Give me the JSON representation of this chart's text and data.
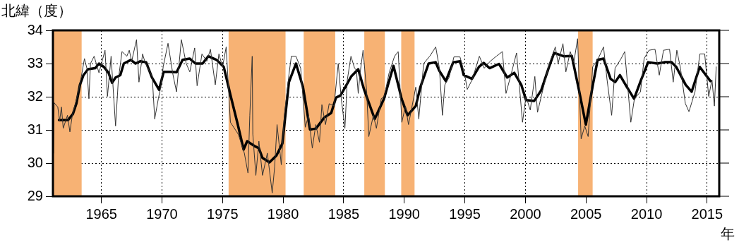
{
  "chart_data": {
    "type": "line",
    "ylabel": "北緯（度）",
    "xlabel": "年",
    "xlim": [
      1961,
      2016
    ],
    "xticks": [
      1965,
      1970,
      1975,
      1980,
      1985,
      1990,
      1995,
      2000,
      2005,
      2010,
      2015
    ],
    "ylim": [
      29,
      34
    ],
    "yticks": [
      29,
      30,
      31,
      32,
      33,
      34
    ],
    "grid": true,
    "marker": "none",
    "bands": [
      {
        "axis": "x",
        "from": 1961,
        "to": 1963.37,
        "color": "#f7b274"
      },
      {
        "axis": "x",
        "from": 1975.5,
        "to": 1980.2,
        "color": "#f7b274"
      },
      {
        "axis": "x",
        "from": 1981.7,
        "to": 1984.3,
        "color": "#f7b274"
      },
      {
        "axis": "x",
        "from": 1986.7,
        "to": 1988.4,
        "color": "#f7b274"
      },
      {
        "axis": "x",
        "from": 1989.75,
        "to": 1990.85,
        "color": "#f7b274"
      },
      {
        "axis": "x",
        "from": 2004.35,
        "to": 2005.55,
        "color": "#f7b274"
      }
    ],
    "series": [
      {
        "color": "#333333",
        "x": [
          1961.05,
          1961.1,
          1961.4,
          1961.55,
          1961.7,
          1961.85,
          1962.2,
          1962.4,
          1962.6,
          1963.1,
          1963.4,
          1963.6,
          1963.8,
          1963.97,
          1964.1,
          1964.4,
          1964.8,
          1965.3,
          1965.5,
          1965.8,
          1966.17,
          1966.4,
          1966.7,
          1967.1,
          1967.3,
          1967.5,
          1967.9,
          1968.1,
          1968.4,
          1968.6,
          1969.2,
          1969.4,
          1969.7,
          1969.9,
          1970.1,
          1970.5,
          1970.9,
          1971.2,
          1971.6,
          1972.0,
          1972.3,
          1972.7,
          1972.9,
          1973.3,
          1973.7,
          1974.0,
          1974.4,
          1974.7,
          1975.0,
          1975.3,
          1975.65,
          1976.3,
          1976.8,
          1977.1,
          1977.25,
          1977.45,
          1977.5,
          1977.75,
          1978.0,
          1978.3,
          1978.7,
          1979.1,
          1979.3,
          1979.5,
          1979.85,
          1980.1,
          1980.5,
          1980.68,
          1981.06,
          1981.45,
          1981.83,
          1982.1,
          1982.41,
          1982.7,
          1983.0,
          1983.2,
          1983.5,
          1983.8,
          1984.2,
          1984.55,
          1984.8,
          1985.1,
          1985.3,
          1985.6,
          1985.9,
          1986.05,
          1986.2,
          1986.35,
          1986.6,
          1986.9,
          1987.07,
          1987.45,
          1987.7,
          1988.1,
          1988.35,
          1988.75,
          1989.2,
          1989.5,
          1989.8,
          1990.1,
          1990.35,
          1990.95,
          1991.2,
          1991.6,
          1992.1,
          1992.6,
          1992.9,
          1993.15,
          1993.35,
          1993.7,
          1994.1,
          1994.6,
          1995.0,
          1995.2,
          1995.6,
          1996.2,
          1996.6,
          1997.1,
          1997.6,
          1998.1,
          1998.4,
          1998.8,
          1999.27,
          1999.76,
          2000.05,
          2000.4,
          2000.78,
          2001.0,
          2001.4,
          2001.98,
          2002.47,
          2002.7,
          2003.1,
          2003.34,
          2003.7,
          2004.0,
          2004.31,
          2004.6,
          2004.9,
          2005.18,
          2005.55,
          2005.96,
          2006.45,
          2006.74,
          2007.12,
          2007.4,
          2007.9,
          2008.2,
          2008.7,
          2009.0,
          2009.5,
          2009.8,
          2010.2,
          2010.7,
          2011.05,
          2011.4,
          2011.9,
          2012.2,
          2012.5,
          2012.8,
          2013.2,
          2013.5,
          2014.0,
          2014.4,
          2014.8,
          2015.13,
          2015.4,
          2015.6,
          2015.75
        ],
        "values": [
          30.3,
          31.82,
          31.69,
          31.27,
          31.69,
          31.05,
          31.44,
          30.94,
          31.44,
          32.15,
          32.72,
          33.15,
          32.86,
          31.94,
          33.0,
          33.22,
          32.72,
          33.4,
          32.01,
          33.22,
          31.12,
          32.51,
          33.36,
          33.22,
          33.4,
          33.07,
          33.72,
          32.44,
          33.29,
          33.04,
          32.6,
          31.33,
          31.94,
          32.29,
          32.9,
          33.61,
          32.68,
          32.15,
          33.72,
          33.0,
          32.75,
          33.47,
          32.33,
          33.29,
          33.07,
          33.43,
          32.36,
          33.29,
          32.9,
          33.5,
          31.23,
          30.87,
          30.3,
          29.7,
          31.44,
          33.22,
          30.87,
          29.63,
          30.66,
          29.63,
          30.3,
          29.1,
          29.88,
          31.16,
          29.95,
          31.44,
          32.72,
          33.22,
          33.22,
          32.86,
          31.08,
          31.44,
          30.45,
          31.16,
          30.63,
          31.76,
          31.16,
          31.79,
          31.72,
          33.0,
          31.94,
          31.05,
          32.51,
          33.22,
          32.86,
          32.8,
          32.1,
          32.7,
          33.4,
          32.15,
          30.8,
          31.44,
          31.05,
          31.94,
          32.01,
          32.72,
          33.22,
          33.36,
          31.23,
          31.72,
          31.16,
          32.29,
          31.33,
          33.0,
          33.22,
          33.5,
          32.86,
          31.44,
          32.36,
          32.58,
          33.2,
          33.2,
          32.65,
          32.22,
          32.51,
          33.22,
          32.86,
          33.07,
          33.22,
          33.36,
          32.1,
          32.65,
          33.32,
          31.23,
          32.01,
          31.6,
          32.61,
          31.53,
          32.15,
          33.0,
          33.5,
          33.0,
          33.6,
          32.75,
          33.36,
          33.04,
          33.75,
          30.73,
          31.12,
          30.8,
          32.9,
          33.11,
          33.5,
          32.51,
          31.44,
          32.86,
          33.15,
          33.36,
          31.23,
          31.94,
          32.15,
          33.15,
          33.4,
          33.43,
          32.65,
          33.4,
          33.43,
          32.44,
          33.4,
          32.86,
          31.8,
          31.55,
          32.15,
          33.29,
          33.29,
          32.01,
          32.51,
          31.72,
          32.9
        ]
      },
      {
        "color": "#000000",
        "x": [
          1961.5,
          1962.26,
          1962.65,
          1962.94,
          1963.23,
          1963.52,
          1963.9,
          1964.49,
          1964.8,
          1965.2,
          1965.59,
          1965.88,
          1966.17,
          1966.56,
          1966.85,
          1967.43,
          1967.82,
          1968.2,
          1968.69,
          1969.17,
          1969.76,
          1970.14,
          1970.63,
          1971.21,
          1971.7,
          1972.28,
          1972.77,
          1973.35,
          1973.83,
          1974.51,
          1975.1,
          1975.68,
          1976.26,
          1976.74,
          1977.03,
          1977.61,
          1978.0,
          1978.29,
          1978.87,
          1979.45,
          1979.94,
          1980.48,
          1981.06,
          1981.64,
          1982.22,
          1982.71,
          1983.39,
          1983.97,
          1984.36,
          1984.74,
          1985.13,
          1985.62,
          1986.2,
          1986.68,
          1987.56,
          1988.33,
          1989.11,
          1989.78,
          1990.27,
          1990.95,
          1991.33,
          1992.01,
          1992.59,
          1992.88,
          1993.43,
          1994.04,
          1994.62,
          1994.91,
          1995.59,
          1996.17,
          1996.56,
          1997.04,
          1997.82,
          1998.5,
          1999.08,
          1999.66,
          2000.05,
          2000.72,
          2001.3,
          2001.98,
          2002.37,
          2003.15,
          2003.83,
          2004.41,
          2004.99,
          2005.57,
          2005.96,
          2006.45,
          2007.03,
          2007.41,
          2007.8,
          2008.38,
          2008.97,
          2009.55,
          2010.13,
          2010.9,
          2011.48,
          2012.06,
          2012.45,
          2013.23,
          2013.72,
          2014.39,
          2015.27
        ],
        "values": [
          31.3,
          31.3,
          31.48,
          31.8,
          32.36,
          32.65,
          32.83,
          32.86,
          33.0,
          32.9,
          32.72,
          32.42,
          32.58,
          32.65,
          33.0,
          33.11,
          33.0,
          33.07,
          33.04,
          32.58,
          32.21,
          32.75,
          32.75,
          32.74,
          33.11,
          33.15,
          33.0,
          33.0,
          33.22,
          33.11,
          32.9,
          32.01,
          31.16,
          30.41,
          30.66,
          30.52,
          30.45,
          30.16,
          30.02,
          30.23,
          30.59,
          32.44,
          33.0,
          32.29,
          31.01,
          31.04,
          31.37,
          31.51,
          31.97,
          32.04,
          32.29,
          32.61,
          32.83,
          32.22,
          31.33,
          31.94,
          32.93,
          31.94,
          31.44,
          31.72,
          32.29,
          33.0,
          33.04,
          32.79,
          32.47,
          33.04,
          33.07,
          32.65,
          32.54,
          32.9,
          33.02,
          32.86,
          32.99,
          32.58,
          32.72,
          32.36,
          31.9,
          31.87,
          32.19,
          32.93,
          33.32,
          33.22,
          33.23,
          32.22,
          31.16,
          32.36,
          33.11,
          33.15,
          32.54,
          32.44,
          32.65,
          32.29,
          31.94,
          32.51,
          33.04,
          33.0,
          33.04,
          33.04,
          32.9,
          32.36,
          32.15,
          32.9,
          32.47
        ]
      }
    ]
  }
}
